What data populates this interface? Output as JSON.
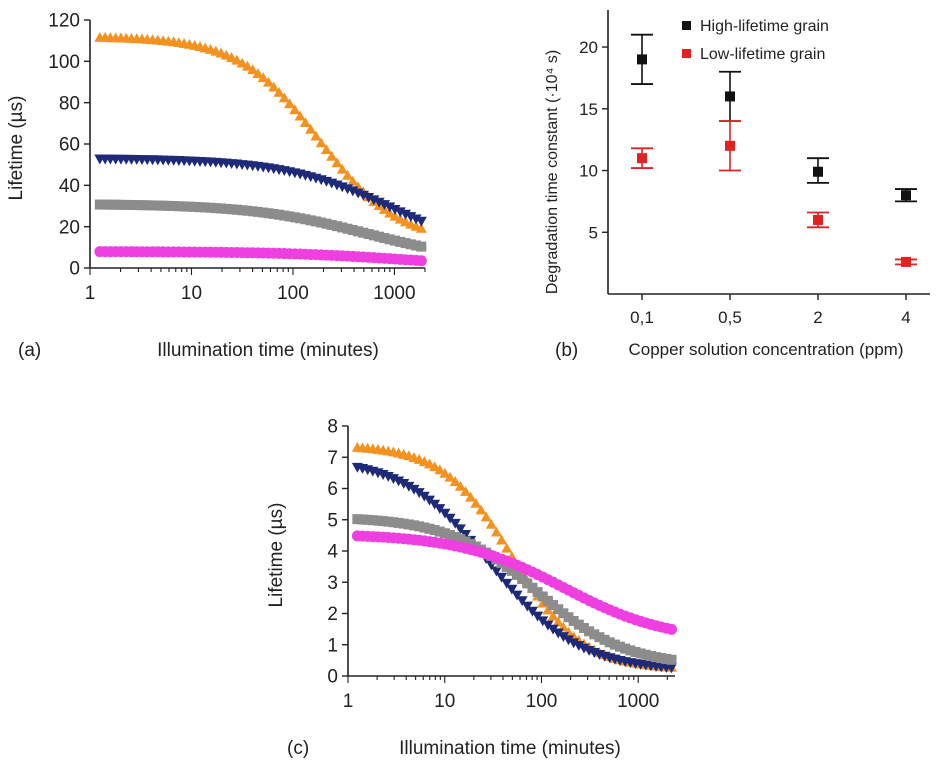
{
  "chart_data": [
    {
      "panel_label": "(a)",
      "type": "scatter",
      "xscale": "log",
      "xlabel": "Illumination time (minutes)",
      "ylabel": "Lifetime (µs)",
      "xlim": [
        1,
        2000
      ],
      "ylim": [
        0,
        120
      ],
      "xticks": [
        1,
        10,
        100,
        1000
      ],
      "xtick_labels": [
        "1",
        "10",
        "100",
        "1000"
      ],
      "yticks": [
        0,
        20,
        40,
        60,
        80,
        100,
        120
      ],
      "ytick_labels": [
        "0",
        "20",
        "40",
        "60",
        "80",
        "100",
        "120"
      ],
      "series": [
        {
          "color": "#F39121",
          "marker": "triangle-up",
          "t0": 112,
          "tinf": 12,
          "tau": 180,
          "p": 1.1
        },
        {
          "color": "#1E2A78",
          "marker": "triangle-down",
          "t0": 53,
          "tinf": 4,
          "tau": 1000,
          "p": 0.8
        },
        {
          "color": "#8C8C8C",
          "marker": "square",
          "t0": 31,
          "tinf": 2,
          "tau": 550,
          "p": 0.75
        },
        {
          "color": "#EE3FE0",
          "marker": "circle",
          "t0": 8,
          "tinf": 0,
          "tau": 1300,
          "p": 0.7
        }
      ]
    },
    {
      "panel_label": "(b)",
      "type": "scatter",
      "xlabel": "Copper solution concentration (ppm)",
      "ylabel": "Degradation time constant (·10⁴ s)",
      "categories": [
        "0,1",
        "0,5",
        "2",
        "4"
      ],
      "ylim": [
        0,
        23
      ],
      "yticks": [
        5,
        10,
        15,
        20
      ],
      "ytick_labels": [
        "5",
        "10",
        "15",
        "20"
      ],
      "legend_position": "top-right",
      "series": [
        {
          "name": "High-lifetime grain",
          "color": "#111111",
          "values": [
            19,
            16,
            9.9,
            8.0
          ],
          "err_low": [
            17,
            14,
            9,
            7.5
          ],
          "err_high": [
            21,
            18,
            11,
            8.5
          ]
        },
        {
          "name": "Low-lifetime grain",
          "color": "#E02222",
          "values": [
            11,
            12,
            6.0,
            2.6
          ],
          "err_low": [
            10.2,
            10,
            5.4,
            2.4
          ],
          "err_high": [
            11.8,
            14,
            6.6,
            2.8
          ]
        }
      ]
    },
    {
      "panel_label": "(c)",
      "type": "scatter",
      "xscale": "log",
      "xlabel": "Illumination time (minutes)",
      "ylabel": "Lifetime (µs)",
      "xlim": [
        1,
        2400
      ],
      "ylim": [
        0,
        8
      ],
      "xticks": [
        1,
        10,
        100,
        1000
      ],
      "xtick_labels": [
        "1",
        "10",
        "100",
        "1000"
      ],
      "yticks": [
        0,
        1,
        2,
        3,
        4,
        5,
        6,
        7,
        8
      ],
      "ytick_labels": [
        "0",
        "1",
        "2",
        "3",
        "4",
        "5",
        "6",
        "7",
        "8"
      ],
      "series": [
        {
          "color": "#F39121",
          "marker": "triangle-up",
          "t0": 7.4,
          "tinf": 0.2,
          "tau": 50,
          "p": 1.2
        },
        {
          "color": "#1E2A78",
          "marker": "triangle-down",
          "t0": 7.0,
          "tinf": 0.15,
          "tau": 30,
          "p": 0.95
        },
        {
          "color": "#8C8C8C",
          "marker": "square",
          "t0": 5.1,
          "tinf": 0.3,
          "tau": 90,
          "p": 0.95
        },
        {
          "color": "#EE3FE0",
          "marker": "circle",
          "t0": 4.55,
          "tinf": 1.1,
          "tau": 170,
          "p": 0.8
        }
      ]
    }
  ]
}
